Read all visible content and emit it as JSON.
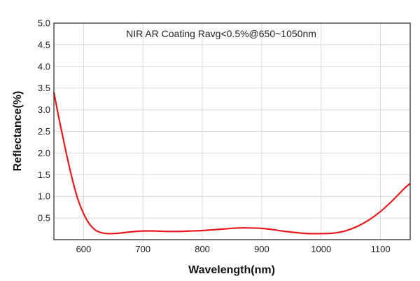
{
  "chart_data": {
    "type": "line",
    "title": "",
    "annotation": "NIR AR Coating Ravg<0.5%@650~1050nm",
    "xlabel": "Wavelength(nm)",
    "ylabel": "Reflectance(%)",
    "xlim": [
      550,
      1150
    ],
    "ylim": [
      0,
      5.0
    ],
    "x_ticks": [
      600,
      700,
      800,
      900,
      1000,
      1100
    ],
    "x_tick_labels": [
      "600",
      "700",
      "800",
      "900",
      "1000",
      "1100"
    ],
    "y_ticks": [
      0.5,
      1.0,
      1.5,
      2.0,
      2.5,
      3.0,
      3.5,
      4.0,
      4.5,
      5.0
    ],
    "y_tick_labels": [
      "0.5",
      "1.0",
      "1.5",
      "2.0",
      "2.5",
      "3.0",
      "3.5",
      "4.0",
      "4.5",
      "5.0"
    ],
    "grid": true,
    "series": [
      {
        "color": "#e8191c",
        "x": [
          550,
          560,
          570,
          580,
          590,
          600,
          610,
          620,
          630,
          640,
          650,
          660,
          680,
          700,
          720,
          740,
          760,
          780,
          800,
          820,
          840,
          860,
          880,
          900,
          920,
          940,
          960,
          980,
          1000,
          1020,
          1040,
          1060,
          1080,
          1100,
          1120,
          1140,
          1150
        ],
        "y": [
          3.4,
          2.7,
          2.05,
          1.45,
          0.95,
          0.6,
          0.36,
          0.22,
          0.16,
          0.14,
          0.14,
          0.15,
          0.18,
          0.2,
          0.2,
          0.19,
          0.19,
          0.2,
          0.21,
          0.23,
          0.25,
          0.27,
          0.27,
          0.26,
          0.23,
          0.19,
          0.16,
          0.14,
          0.14,
          0.15,
          0.2,
          0.3,
          0.45,
          0.65,
          0.9,
          1.18,
          1.3
        ]
      }
    ]
  }
}
